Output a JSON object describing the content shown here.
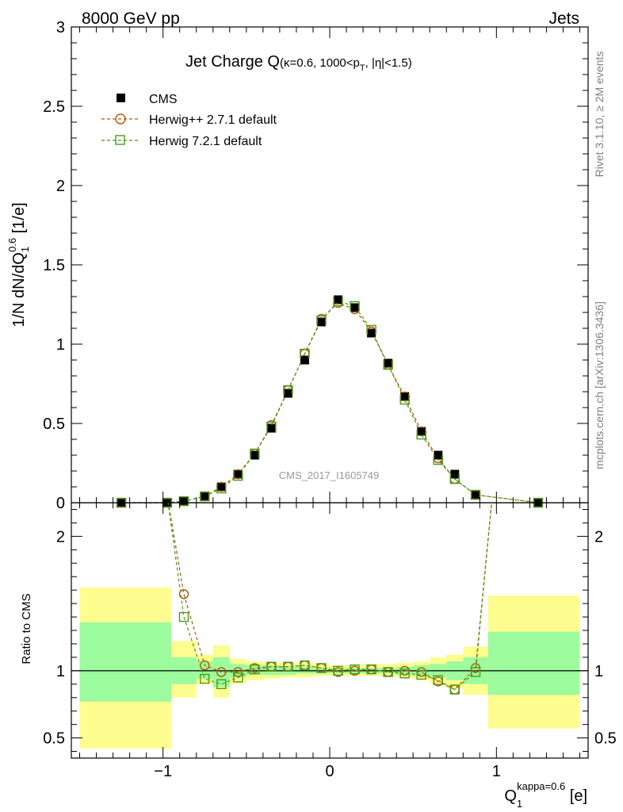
{
  "header": {
    "left": "8000 GeV pp",
    "right": "Jets"
  },
  "side_labels": {
    "rivet": "Rivet 3.1.10, ≥ 2M events",
    "mcplots": "mcplots.cern.ch [arXiv:1306.3436]"
  },
  "chart_data": [
    {
      "type": "scatter",
      "panel": "main",
      "title_main": "Jet Charge Q",
      "title_sub": "(κ=0.6, 1000<p",
      "title_sub_idx": "T",
      "title_sub_tail": ", |η|<1.5)",
      "ylabel": "1/N dN/dQ",
      "ylabel_sub": "1",
      "ylabel_sup": "0.6",
      "ylabel_unit": " [1/e]",
      "watermark": "CMS_2017_I1605749",
      "xlim": [
        -1.55,
        1.55
      ],
      "ylim": [
        0,
        3
      ],
      "yticks": [
        0,
        0.5,
        1,
        1.5,
        2,
        2.5,
        3
      ],
      "ytick_labels": [
        "0",
        "0.5",
        "1",
        "1.5",
        "2",
        "2.5",
        "3"
      ],
      "legend_position": "top-left",
      "series": [
        {
          "name": "CMS",
          "marker": "filled-square",
          "color": "#000000",
          "x": [
            -1.25,
            -0.975,
            -0.875,
            -0.75,
            -0.65,
            -0.55,
            -0.45,
            -0.35,
            -0.25,
            -0.15,
            -0.05,
            0.05,
            0.15,
            0.25,
            0.35,
            0.45,
            0.55,
            0.65,
            0.75,
            0.875,
            1.25
          ],
          "y": [
            0.0,
            0.0,
            0.01,
            0.04,
            0.1,
            0.18,
            0.3,
            0.47,
            0.69,
            0.9,
            1.14,
            1.28,
            1.23,
            1.07,
            0.88,
            0.67,
            0.45,
            0.3,
            0.18,
            0.05,
            0.0
          ]
        },
        {
          "name": "Herwig++ 2.7.1 default",
          "marker": "open-circle",
          "color": "#b35900",
          "x": [
            -1.25,
            -0.975,
            -0.875,
            -0.75,
            -0.65,
            -0.55,
            -0.45,
            -0.35,
            -0.25,
            -0.15,
            -0.05,
            0.05,
            0.15,
            0.25,
            0.35,
            0.45,
            0.55,
            0.65,
            0.75,
            0.875,
            1.25
          ],
          "y": [
            0.0,
            0.0,
            0.01,
            0.04,
            0.1,
            0.18,
            0.31,
            0.49,
            0.71,
            0.94,
            1.16,
            1.26,
            1.22,
            1.08,
            0.87,
            0.67,
            0.45,
            0.28,
            0.15,
            0.05,
            0.0
          ]
        },
        {
          "name": "Herwig 7.2.1 default",
          "marker": "open-square",
          "color": "#4a9a1a",
          "x": [
            -1.25,
            -0.975,
            -0.875,
            -0.75,
            -0.65,
            -0.55,
            -0.45,
            -0.35,
            -0.25,
            -0.15,
            -0.05,
            0.05,
            0.15,
            0.25,
            0.35,
            0.45,
            0.55,
            0.65,
            0.75,
            0.875,
            1.25
          ],
          "y": [
            0.0,
            0.0,
            0.01,
            0.04,
            0.09,
            0.17,
            0.31,
            0.48,
            0.71,
            0.94,
            1.15,
            1.27,
            1.24,
            1.09,
            0.87,
            0.65,
            0.43,
            0.27,
            0.15,
            0.05,
            0.0
          ]
        }
      ]
    },
    {
      "type": "scatter",
      "panel": "ratio",
      "ylabel": "Ratio to CMS",
      "xlabel": "Q",
      "xlabel_sub": "1",
      "xlabel_sup": "kappa=0.6",
      "xlabel_unit": " [e]",
      "xlim": [
        -1.55,
        1.55
      ],
      "ylim": [
        0.35,
        2.25
      ],
      "yticks": [
        0.5,
        1,
        2
      ],
      "ytick_labels": [
        "0.5",
        "1",
        "2"
      ],
      "xticks": [
        -1,
        0,
        1
      ],
      "xtick_labels": [
        "−1",
        "0",
        "1"
      ],
      "reference_line": 1.0,
      "bands": [
        {
          "x0": -1.5,
          "x1": -0.95,
          "y_inner": [
            0.77,
            1.36
          ],
          "y_outer": [
            0.42,
            1.62
          ]
        },
        {
          "x0": -0.95,
          "x1": -0.8,
          "y_inner": [
            0.9,
            1.1
          ],
          "y_outer": [
            0.8,
            1.22
          ]
        },
        {
          "x0": -0.8,
          "x1": -0.7,
          "y_inner": [
            0.94,
            1.07
          ],
          "y_outer": [
            0.9,
            1.12
          ]
        },
        {
          "x0": -0.7,
          "x1": -0.6,
          "y_inner": [
            0.88,
            1.1
          ],
          "y_outer": [
            0.8,
            1.19
          ]
        },
        {
          "x0": -0.6,
          "x1": -0.5,
          "y_inner": [
            0.95,
            1.05
          ],
          "y_outer": [
            0.9,
            1.09
          ]
        },
        {
          "x0": -0.5,
          "x1": -0.4,
          "y_inner": [
            0.97,
            1.04
          ],
          "y_outer": [
            0.93,
            1.07
          ]
        },
        {
          "x0": -0.4,
          "x1": -0.3,
          "y_inner": [
            0.97,
            1.04
          ],
          "y_outer": [
            0.94,
            1.06
          ]
        },
        {
          "x0": -0.3,
          "x1": -0.2,
          "y_inner": [
            0.97,
            1.03
          ],
          "y_outer": [
            0.95,
            1.06
          ]
        },
        {
          "x0": -0.2,
          "x1": -0.1,
          "y_inner": [
            0.98,
            1.03
          ],
          "y_outer": [
            0.95,
            1.06
          ]
        },
        {
          "x0": -0.1,
          "x1": 0.0,
          "y_inner": [
            0.98,
            1.02
          ],
          "y_outer": [
            0.96,
            1.05
          ]
        },
        {
          "x0": 0.0,
          "x1": 0.1,
          "y_inner": [
            0.98,
            1.02
          ],
          "y_outer": [
            0.96,
            1.04
          ]
        },
        {
          "x0": 0.1,
          "x1": 0.2,
          "y_inner": [
            0.98,
            1.02
          ],
          "y_outer": [
            0.96,
            1.04
          ]
        },
        {
          "x0": 0.2,
          "x1": 0.3,
          "y_inner": [
            0.98,
            1.02
          ],
          "y_outer": [
            0.96,
            1.05
          ]
        },
        {
          "x0": 0.3,
          "x1": 0.4,
          "y_inner": [
            0.98,
            1.02
          ],
          "y_outer": [
            0.96,
            1.05
          ]
        },
        {
          "x0": 0.4,
          "x1": 0.5,
          "y_inner": [
            0.97,
            1.03
          ],
          "y_outer": [
            0.95,
            1.06
          ]
        },
        {
          "x0": 0.5,
          "x1": 0.6,
          "y_inner": [
            0.96,
            1.04
          ],
          "y_outer": [
            0.93,
            1.07
          ]
        },
        {
          "x0": 0.6,
          "x1": 0.7,
          "y_inner": [
            0.95,
            1.05
          ],
          "y_outer": [
            0.9,
            1.1
          ]
        },
        {
          "x0": 0.7,
          "x1": 0.8,
          "y_inner": [
            0.93,
            1.07
          ],
          "y_outer": [
            0.87,
            1.12
          ]
        },
        {
          "x0": 0.8,
          "x1": 0.95,
          "y_inner": [
            0.9,
            1.1
          ],
          "y_outer": [
            0.82,
            1.18
          ]
        },
        {
          "x0": 0.95,
          "x1": 1.5,
          "y_inner": [
            0.82,
            1.29
          ],
          "y_outer": [
            0.57,
            1.56
          ]
        }
      ],
      "series": [
        {
          "name": "Herwig++ 2.7.1 default",
          "marker": "open-circle",
          "color": "#b35900",
          "x": [
            -0.975,
            -0.875,
            -0.75,
            -0.65,
            -0.55,
            -0.45,
            -0.35,
            -0.25,
            -0.15,
            -0.05,
            0.05,
            0.15,
            0.25,
            0.35,
            0.45,
            0.55,
            0.65,
            0.75,
            0.875,
            0.975
          ],
          "y": [
            2.3,
            1.57,
            1.04,
            0.99,
            0.99,
            1.02,
            1.03,
            1.03,
            1.04,
            1.02,
            0.99,
            1.0,
            1.01,
            0.99,
            1.0,
            0.99,
            0.92,
            0.86,
            1.02,
            2.3
          ]
        },
        {
          "name": "Herwig 7.2.1 default",
          "marker": "open-square",
          "color": "#4a9a1a",
          "x": [
            -0.975,
            -0.875,
            -0.75,
            -0.65,
            -0.55,
            -0.45,
            -0.35,
            -0.25,
            -0.15,
            -0.05,
            0.05,
            0.15,
            0.25,
            0.35,
            0.45,
            0.55,
            0.65,
            0.75,
            0.875,
            0.975
          ],
          "y": [
            2.3,
            1.4,
            0.94,
            0.9,
            0.95,
            1.01,
            1.03,
            1.03,
            1.04,
            1.02,
            1.0,
            1.01,
            1.01,
            0.99,
            0.98,
            0.97,
            0.93,
            0.86,
            0.99,
            2.3
          ]
        }
      ]
    }
  ],
  "colors": {
    "band_inner": "#9cfb9c",
    "band_outer": "#fdfd8f",
    "frame": "#000000",
    "side_text": "#808080",
    "watermark": "#9a9a9a"
  }
}
